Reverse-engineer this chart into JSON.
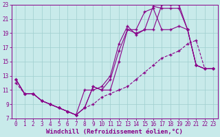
{
  "background_color": "#c8eaea",
  "grid_color": "#9ecece",
  "line_color": "#880088",
  "xlabel": "Windchill (Refroidissement éolien,°C)",
  "xlabel_fontsize": 6.5,
  "tick_fontsize": 5.5,
  "xlim": [
    -0.5,
    23.5
  ],
  "ylim": [
    7,
    23
  ],
  "yticks": [
    7,
    9,
    11,
    13,
    15,
    17,
    19,
    21,
    23
  ],
  "xticks": [
    0,
    1,
    2,
    3,
    4,
    5,
    6,
    7,
    8,
    9,
    10,
    11,
    12,
    13,
    14,
    15,
    16,
    17,
    18,
    19,
    20,
    21,
    22,
    23
  ],
  "line1_x": [
    0,
    1,
    2,
    3,
    4,
    5,
    6,
    7,
    8,
    9,
    10,
    11,
    12,
    13,
    14,
    15,
    16,
    17,
    18,
    19,
    20,
    21,
    22,
    23
  ],
  "line1_y": [
    12.5,
    10.5,
    10.5,
    9.5,
    9.0,
    8.5,
    8.0,
    7.5,
    11.0,
    11.0,
    11.5,
    13.0,
    17.5,
    20.0,
    18.8,
    19.5,
    22.8,
    22.5,
    22.5,
    22.5,
    19.5,
    14.5,
    14.0,
    14.0
  ],
  "line2_x": [
    0,
    1,
    2,
    3,
    4,
    5,
    6,
    7,
    8,
    9,
    10,
    11,
    12,
    13,
    14,
    15,
    16,
    17,
    18,
    19,
    20,
    21,
    22,
    23
  ],
  "line2_y": [
    12.5,
    10.5,
    10.5,
    9.5,
    9.0,
    8.5,
    8.0,
    7.5,
    8.5,
    11.5,
    11.0,
    11.0,
    15.0,
    19.5,
    19.0,
    19.5,
    19.5,
    23.0,
    23.0,
    23.0,
    19.5,
    14.5,
    14.0,
    14.0
  ],
  "line3_x": [
    0,
    1,
    2,
    3,
    4,
    5,
    6,
    7,
    8,
    9,
    10,
    11,
    12,
    13,
    14,
    15,
    16,
    17,
    18,
    19,
    20,
    21,
    22,
    23
  ],
  "line3_y": [
    12.0,
    10.5,
    10.5,
    9.5,
    9.0,
    8.5,
    8.0,
    7.5,
    8.5,
    9.0,
    10.0,
    10.5,
    11.0,
    11.5,
    12.5,
    13.5,
    14.5,
    15.5,
    16.0,
    16.5,
    17.5,
    18.0,
    14.0,
    14.0
  ],
  "line4_x": [
    0,
    1,
    2,
    3,
    4,
    5,
    6,
    7,
    8,
    9,
    10,
    11,
    12,
    13,
    14,
    15,
    16,
    17,
    18,
    19,
    20,
    21,
    22,
    23
  ],
  "line4_y": [
    12.5,
    10.5,
    10.5,
    9.5,
    9.0,
    8.5,
    8.0,
    7.5,
    8.5,
    11.5,
    11.0,
    12.5,
    16.5,
    19.5,
    19.5,
    22.0,
    22.5,
    19.5,
    19.5,
    20.0,
    19.5,
    14.5,
    14.0,
    14.0
  ],
  "markersize": 2.0,
  "linewidth": 0.8
}
